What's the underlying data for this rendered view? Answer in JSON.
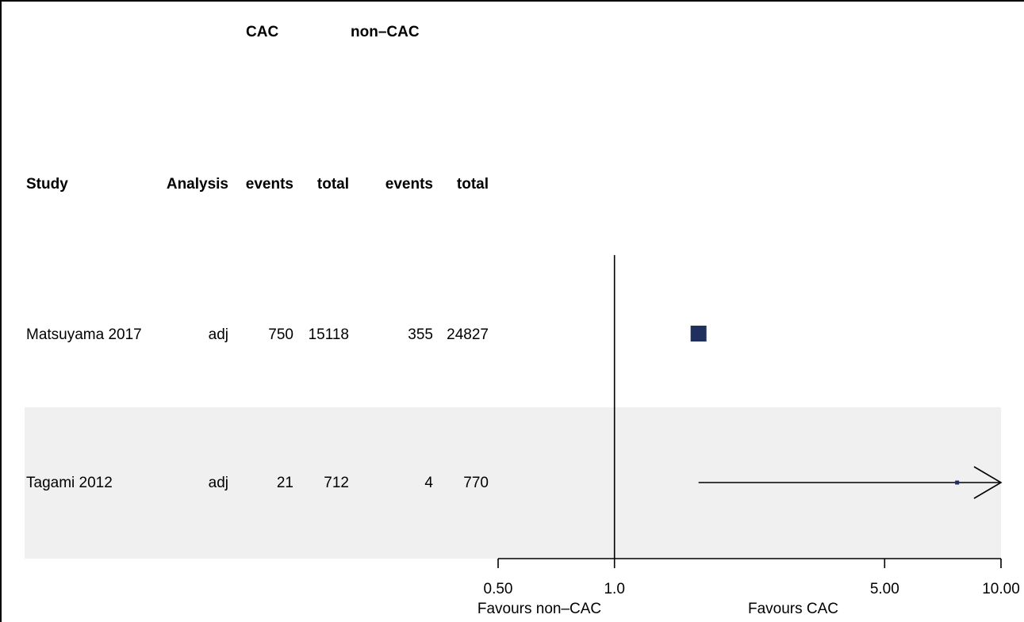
{
  "table": {
    "group_cac": "CAC",
    "group_noncac": "non–CAC",
    "col_study": "Study",
    "col_analysis": "Analysis",
    "col_cac_events": "events",
    "col_cac_total": "total",
    "col_noncac_events": "events",
    "col_noncac_total": "total",
    "rows": [
      {
        "study": "Matsuyama 2017",
        "analysis": "adj",
        "cac_events": "750",
        "cac_total": "15118",
        "noncac_events": "355",
        "noncac_total": "24827"
      },
      {
        "study": "Tagami 2012",
        "analysis": "adj",
        "cac_events": "21",
        "cac_total": "712",
        "noncac_events": "4",
        "noncac_total": "770"
      }
    ]
  },
  "chart_data": {
    "type": "forest",
    "scale": "log",
    "xlim": [
      0.5,
      10
    ],
    "reference_line": 1.0,
    "ticks": [
      {
        "value": 0.5,
        "label": "0.50"
      },
      {
        "value": 1.0,
        "label": "1.0"
      },
      {
        "value": 5.0,
        "label": "5.00"
      },
      {
        "value": 10.0,
        "label": "10.00"
      }
    ],
    "favours_left": "Favours non–CAC",
    "favours_right": "Favours CAC",
    "points": [
      {
        "study": "Matsuyama 2017",
        "estimate": 1.65,
        "weight_rank": "large",
        "ci_shown": false
      },
      {
        "study": "Tagami 2012",
        "estimate": 7.7,
        "lower": 1.65,
        "upper_beyond_axis": true,
        "weight_rank": "small"
      }
    ],
    "colors": {
      "marker": "#1f2f5e",
      "stripe": "#f0f0f0",
      "line": "#000000"
    }
  }
}
